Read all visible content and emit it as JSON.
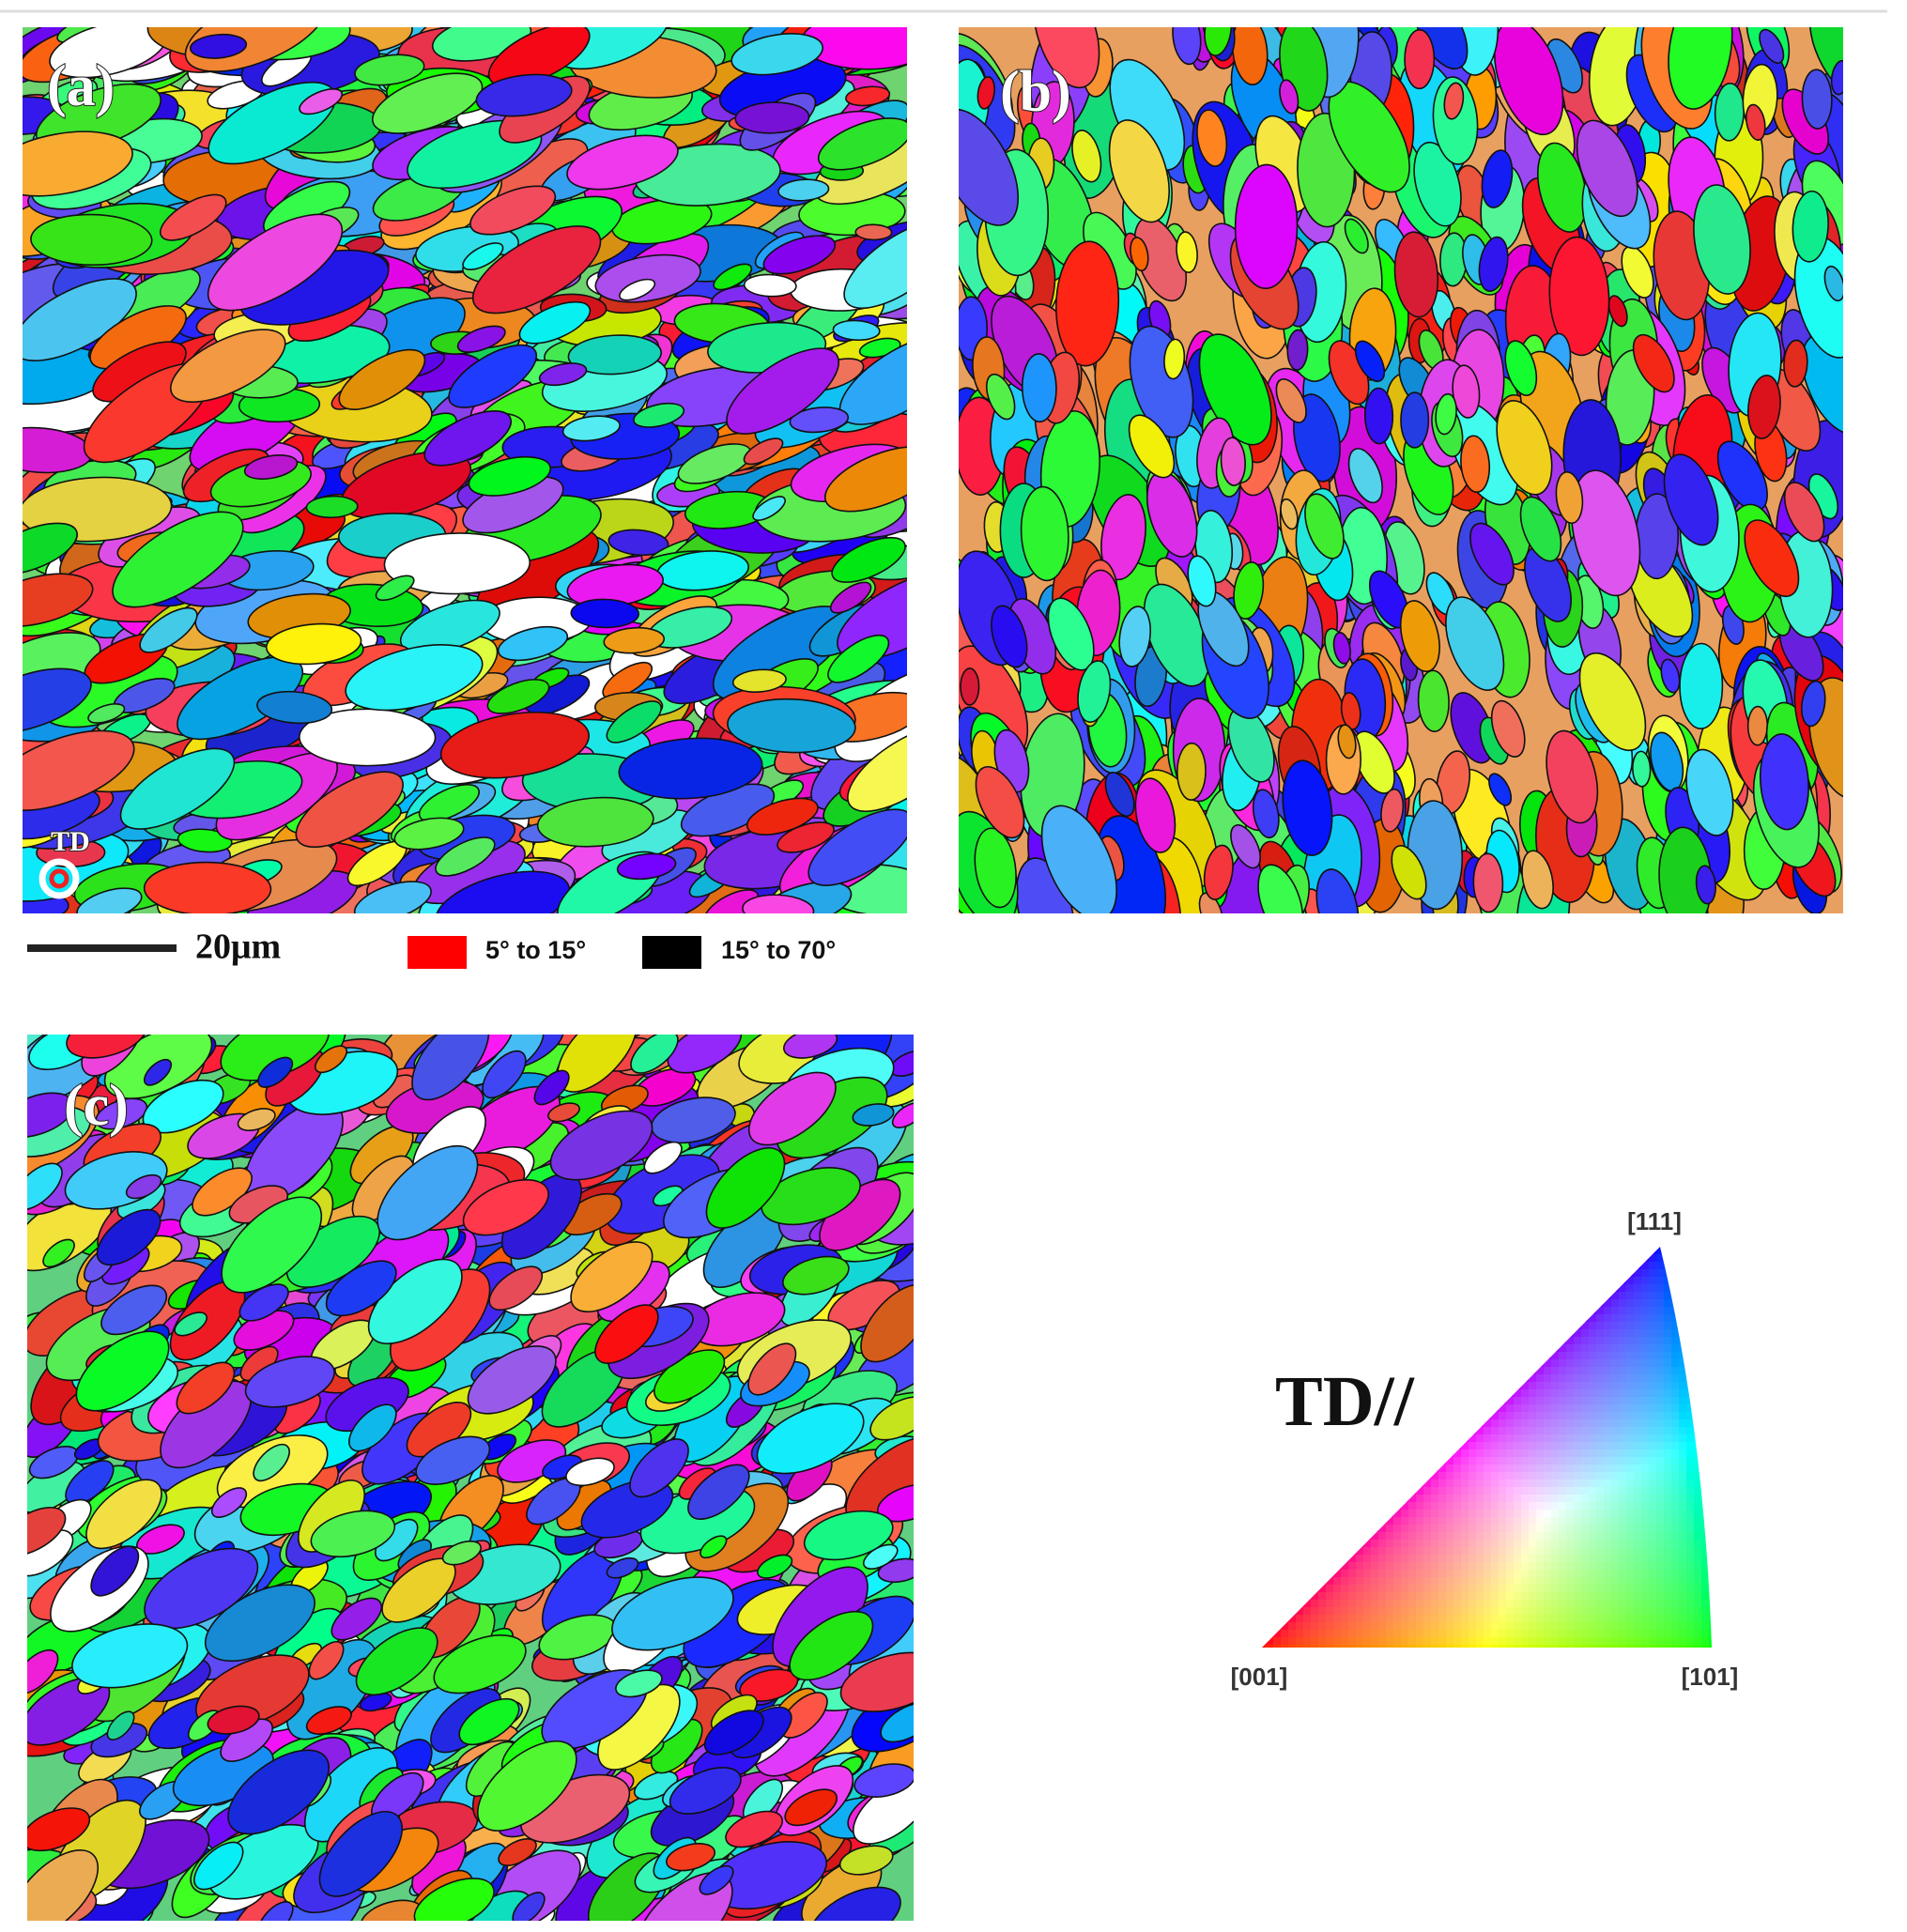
{
  "panels": [
    {
      "label": "(a)",
      "marker": "TD"
    },
    {
      "label": "(b)"
    },
    {
      "label": "(c)"
    }
  ],
  "scale_bar": "20μm",
  "legend": [
    {
      "label": "5° to 15°",
      "color": "#ff0000"
    },
    {
      "label": "15° to 70°",
      "color": "#000000"
    }
  ],
  "ipf_key": {
    "title": "TD//",
    "corners": [
      "[001]",
      "[101]",
      "[111]"
    ]
  }
}
